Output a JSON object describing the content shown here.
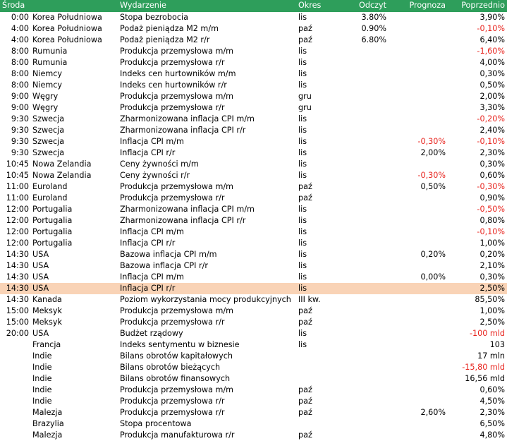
{
  "colors": {
    "header_bg": "#2e9e5b",
    "header_text": "#ffffff",
    "highlight_bg": "#f9d3b6",
    "negative": "#e8241e"
  },
  "header": {
    "day": "Środa",
    "event": "Wydarzenie",
    "period": "Okres",
    "actual": "Odczyt",
    "forecast": "Prognoza",
    "previous": "Poprzednio"
  },
  "rows": [
    {
      "time": "0:00",
      "country": "Korea Południowa",
      "event": "Stopa bezrobocia",
      "period": "lis",
      "actual": "3.80%",
      "forecast": "",
      "previous": "3,90%"
    },
    {
      "time": "4:00",
      "country": "Korea Południowa",
      "event": "Podaż pieniądza M2 m/m",
      "period": "paź",
      "actual": "0.90%",
      "forecast": "",
      "previous": "-0,10%"
    },
    {
      "time": "4:00",
      "country": "Korea Południowa",
      "event": "Podaż pieniądza M2 r/r",
      "period": "paź",
      "actual": "6.80%",
      "forecast": "",
      "previous": "6,40%"
    },
    {
      "time": "8:00",
      "country": "Rumunia",
      "event": "Produkcja przemysłowa m/m",
      "period": "lis",
      "actual": "",
      "forecast": "",
      "previous": "-1,60%"
    },
    {
      "time": "8:00",
      "country": "Rumunia",
      "event": "Produkcja przemysłowa r/r",
      "period": "lis",
      "actual": "",
      "forecast": "",
      "previous": "4,00%"
    },
    {
      "time": "8:00",
      "country": "Niemcy",
      "event": "Indeks cen hurtowników m/m",
      "period": "lis",
      "actual": "",
      "forecast": "",
      "previous": "0,30%"
    },
    {
      "time": "8:00",
      "country": "Niemcy",
      "event": "Indeks cen hurtowników r/r",
      "period": "lis",
      "actual": "",
      "forecast": "",
      "previous": "0,50%"
    },
    {
      "time": "9:00",
      "country": "Węgry",
      "event": "Produkcja przemysłowa m/m",
      "period": "gru",
      "actual": "",
      "forecast": "",
      "previous": "2,00%"
    },
    {
      "time": "9:00",
      "country": "Węgry",
      "event": "Produkcja przemysłowa r/r",
      "period": "gru",
      "actual": "",
      "forecast": "",
      "previous": "3,30%"
    },
    {
      "time": "9:30",
      "country": "Szwecja",
      "event": "Zharmonizowana inflacja CPI m/m",
      "period": "lis",
      "actual": "",
      "forecast": "",
      "previous": "-0,20%"
    },
    {
      "time": "9:30",
      "country": "Szwecja",
      "event": "Zharmonizowana inflacja CPI r/r",
      "period": "lis",
      "actual": "",
      "forecast": "",
      "previous": "2,40%"
    },
    {
      "time": "9:30",
      "country": "Szwecja",
      "event": "Inflacja CPI m/m",
      "period": "lis",
      "actual": "",
      "forecast": "-0,30%",
      "previous": "-0,10%"
    },
    {
      "time": "9:30",
      "country": "Szwecja",
      "event": "Inflacja CPI r/r",
      "period": "lis",
      "actual": "",
      "forecast": "2,00%",
      "previous": "2,30%"
    },
    {
      "time": "10:45",
      "country": "Nowa Zelandia",
      "event": "Ceny żywności m/m",
      "period": "lis",
      "actual": "",
      "forecast": "",
      "previous": "0,30%"
    },
    {
      "time": "10:45",
      "country": "Nowa Zelandia",
      "event": "Ceny żywności r/r",
      "period": "lis",
      "actual": "",
      "forecast": "-0,30%",
      "previous": "0,60%"
    },
    {
      "time": "11:00",
      "country": "Euroland",
      "event": "Produkcja przemysłowa m/m",
      "period": "paź",
      "actual": "",
      "forecast": "0,50%",
      "previous": "-0,30%"
    },
    {
      "time": "11:00",
      "country": "Euroland",
      "event": "Produkcja przemysłowa r/r",
      "period": "paź",
      "actual": "",
      "forecast": "",
      "previous": "0,90%"
    },
    {
      "time": "12:00",
      "country": "Portugalia",
      "event": "Zharmonizowana inflacja CPI m/m",
      "period": "lis",
      "actual": "",
      "forecast": "",
      "previous": "-0,50%"
    },
    {
      "time": "12:00",
      "country": "Portugalia",
      "event": "Zharmonizowana inflacja CPI r/r",
      "period": "lis",
      "actual": "",
      "forecast": "",
      "previous": "0,80%"
    },
    {
      "time": "12:00",
      "country": "Portugalia",
      "event": "Inflacja CPI m/m",
      "period": "lis",
      "actual": "",
      "forecast": "",
      "previous": "-0,10%"
    },
    {
      "time": "12:00",
      "country": "Portugalia",
      "event": "Inflacja CPI r/r",
      "period": "lis",
      "actual": "",
      "forecast": "",
      "previous": "1,00%"
    },
    {
      "time": "14:30",
      "country": "USA",
      "event": "Bazowa inflacja CPI m/m",
      "period": "lis",
      "actual": "",
      "forecast": "0,20%",
      "previous": "0,20%"
    },
    {
      "time": "14:30",
      "country": "USA",
      "event": "Bazowa inflacja CPI r/r",
      "period": "lis",
      "actual": "",
      "forecast": "",
      "previous": "2,10%"
    },
    {
      "time": "14:30",
      "country": "USA",
      "event": "Inflacja CPI m/m",
      "period": "lis",
      "actual": "",
      "forecast": "0,00%",
      "previous": "0,30%"
    },
    {
      "time": "14:30",
      "country": "USA",
      "event": "Inflacja CPI r/r",
      "period": "lis",
      "actual": "",
      "forecast": "",
      "previous": "2,50%",
      "highlight": true
    },
    {
      "time": "14:30",
      "country": "Kanada",
      "event": "Poziom wykorzystania mocy produkcyjnych",
      "period": "III kw.",
      "actual": "",
      "forecast": "",
      "previous": "85,50%"
    },
    {
      "time": "15:00",
      "country": "Meksyk",
      "event": "Produkcja przemysłowa m/m",
      "period": "paź",
      "actual": "",
      "forecast": "",
      "previous": "1,00%"
    },
    {
      "time": "15:00",
      "country": "Meksyk",
      "event": "Produkcja przemysłowa r/r",
      "period": "paź",
      "actual": "",
      "forecast": "",
      "previous": "2,50%"
    },
    {
      "time": "20:00",
      "country": "USA",
      "event": "Budżet rządowy",
      "period": "lis",
      "actual": "",
      "forecast": "",
      "previous": "-100 mld"
    },
    {
      "time": "",
      "country": "Francja",
      "event": "Indeks sentymentu w biznesie",
      "period": "lis",
      "actual": "",
      "forecast": "",
      "previous": "103"
    },
    {
      "time": "",
      "country": "Indie",
      "event": "Bilans obrotów kapitałowych",
      "period": "",
      "actual": "",
      "forecast": "",
      "previous": "17 mln"
    },
    {
      "time": "",
      "country": "Indie",
      "event": "Bilans obrotów bieżących",
      "period": "",
      "actual": "",
      "forecast": "",
      "previous": "-15,80 mld"
    },
    {
      "time": "",
      "country": "Indie",
      "event": "Bilans obrotów finansowych",
      "period": "",
      "actual": "",
      "forecast": "",
      "previous": "16,56 mld"
    },
    {
      "time": "",
      "country": "Indie",
      "event": "Produkcja przemysłowa m/m",
      "period": "paź",
      "actual": "",
      "forecast": "",
      "previous": "0,60%"
    },
    {
      "time": "",
      "country": "Indie",
      "event": "Produkcja przemysłowa r/r",
      "period": "paź",
      "actual": "",
      "forecast": "",
      "previous": "4,50%"
    },
    {
      "time": "",
      "country": "Malezja",
      "event": "Produkcja przemysłowa r/r",
      "period": "paź",
      "actual": "",
      "forecast": "2,60%",
      "previous": "2,30%"
    },
    {
      "time": "",
      "country": "Brazylia",
      "event": "Stopa procentowa",
      "period": "",
      "actual": "",
      "forecast": "",
      "previous": "6,50%"
    },
    {
      "time": "",
      "country": "Malezja",
      "event": "Produkcja manufakturowa r/r",
      "period": "paź",
      "actual": "",
      "forecast": "",
      "previous": "4,80%"
    }
  ]
}
